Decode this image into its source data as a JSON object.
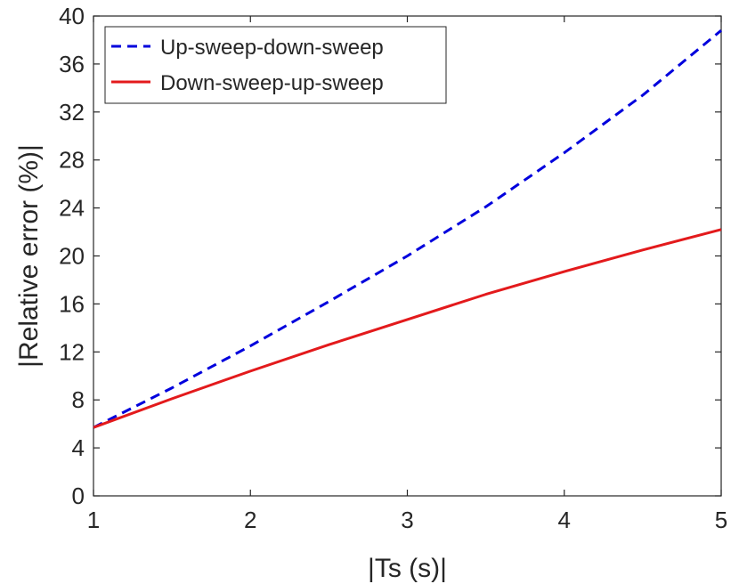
{
  "chart_data": {
    "type": "line",
    "title": "",
    "xlabel": "|Ts (s)|",
    "ylabel": "|Relative error (%)|",
    "xlim": [
      1,
      5
    ],
    "ylim": [
      0,
      40
    ],
    "xticks": [
      1,
      2,
      3,
      4,
      5
    ],
    "yticks": [
      0,
      4,
      8,
      12,
      16,
      20,
      24,
      28,
      32,
      36,
      40
    ],
    "grid": false,
    "legend_position": "top-left",
    "x": [
      1,
      1.5,
      2,
      2.5,
      3,
      3.5,
      4,
      4.5,
      5
    ],
    "series": [
      {
        "name": "Up-sweep-down-sweep",
        "style": "dashed",
        "color": "#0000dd",
        "values": [
          5.7,
          9.0,
          12.5,
          16.2,
          20.0,
          24.1,
          28.6,
          33.4,
          38.8
        ]
      },
      {
        "name": "Down-sweep-up-sweep",
        "style": "solid",
        "color": "#e31a1c",
        "values": [
          5.7,
          8.1,
          10.4,
          12.6,
          14.7,
          16.8,
          18.7,
          20.5,
          22.2
        ]
      }
    ]
  }
}
